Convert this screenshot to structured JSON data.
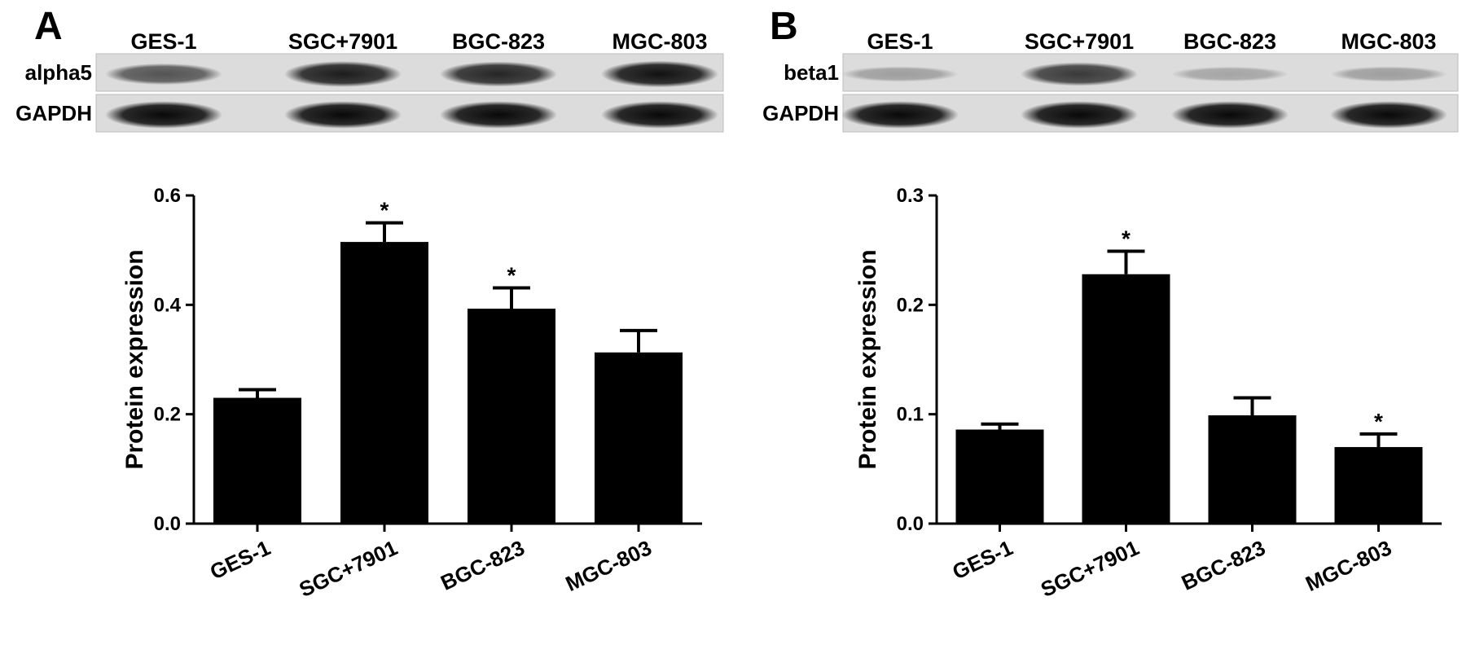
{
  "panels": [
    {
      "letter": "A",
      "blot": {
        "lanes": [
          "GES-1",
          "SGC+7901",
          "BGC-823",
          "MGC-803"
        ],
        "rows": [
          {
            "label": "alpha5",
            "band_intensity": [
              0.55,
              0.85,
              0.8,
              0.9
            ]
          },
          {
            "label": "GAPDH",
            "band_intensity": [
              0.95,
              0.95,
              0.95,
              0.95
            ]
          }
        ]
      }
    },
    {
      "letter": "B",
      "blot": {
        "lanes": [
          "GES-1",
          "SGC+7901",
          "BGC-823",
          "MGC-803"
        ],
        "rows": [
          {
            "label": "beta1",
            "band_intensity": [
              0.15,
              0.7,
              0.12,
              0.15
            ]
          },
          {
            "label": "GAPDH",
            "band_intensity": [
              0.95,
              0.95,
              0.95,
              0.95
            ]
          }
        ]
      }
    }
  ],
  "chart_data": [
    {
      "type": "bar",
      "panel": "A",
      "categories": [
        "GES-1",
        "SGC+7901",
        "BGC-823",
        "MGC-803"
      ],
      "values": [
        0.23,
        0.515,
        0.393,
        0.313
      ],
      "errors": [
        0.015,
        0.035,
        0.038,
        0.04
      ],
      "significance": [
        "",
        "*",
        "*",
        ""
      ],
      "ylabel": "Protein expression",
      "ylim": [
        0,
        0.6
      ],
      "yticks": [
        0.0,
        0.2,
        0.4,
        0.6
      ],
      "ytick_labels": [
        "0.0",
        "0.2",
        "0.4",
        "0.6"
      ],
      "bar_color": "#000000"
    },
    {
      "type": "bar",
      "panel": "B",
      "categories": [
        "GES-1",
        "SGC+7901",
        "BGC-823",
        "MGC-803"
      ],
      "values": [
        0.086,
        0.228,
        0.099,
        0.07
      ],
      "errors": [
        0.005,
        0.021,
        0.016,
        0.012
      ],
      "significance": [
        "",
        "*",
        "",
        "*"
      ],
      "ylabel": "Protein expression",
      "ylim": [
        0,
        0.3
      ],
      "yticks": [
        0.0,
        0.1,
        0.2,
        0.3
      ],
      "ytick_labels": [
        "0.0",
        "0.1",
        "0.2",
        "0.3"
      ],
      "bar_color": "#000000"
    }
  ]
}
